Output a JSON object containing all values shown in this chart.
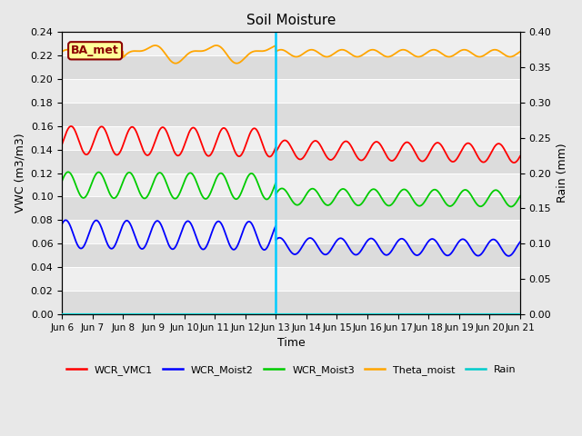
{
  "title": "Soil Moisture",
  "ylabel_left": "VWC (m3/m3)",
  "ylabel_right": "Rain (mm)",
  "xlabel": "Time",
  "ylim_left": [
    0.0,
    0.24
  ],
  "ylim_right": [
    0.0,
    0.4
  ],
  "vline_day": 7.0,
  "annotation_text": "BA_met",
  "annotation_color": "#8B0000",
  "annotation_bg": "#FFFF99",
  "xtick_labels": [
    "Jun 6",
    "Jun 7",
    "Jun 8",
    "Jun 9",
    "Jun 10",
    "Jun 11",
    "Jun 12",
    "Jun 13",
    "Jun 14",
    "Jun 15",
    "Jun 16",
    "Jun 17",
    "Jun 18",
    "Jun 19",
    "Jun 20",
    "Jun 21"
  ],
  "fig_bg": "#E8E8E8",
  "band_dark": "#DCDCDC",
  "band_light": "#EFEFEF",
  "colors": {
    "WCR_VMC1": "#FF0000",
    "WCR_Moist2": "#0000FF",
    "WCR_Moist3": "#00CC00",
    "Theta_moist": "#FFA500",
    "Rain": "#00CCCC"
  },
  "left_ticks": [
    0.0,
    0.02,
    0.04,
    0.06,
    0.08,
    0.1,
    0.12,
    0.14,
    0.16,
    0.18,
    0.2,
    0.22,
    0.24
  ],
  "right_ticks": [
    0.0,
    0.05,
    0.1,
    0.15,
    0.2,
    0.25,
    0.3,
    0.35,
    0.4
  ]
}
